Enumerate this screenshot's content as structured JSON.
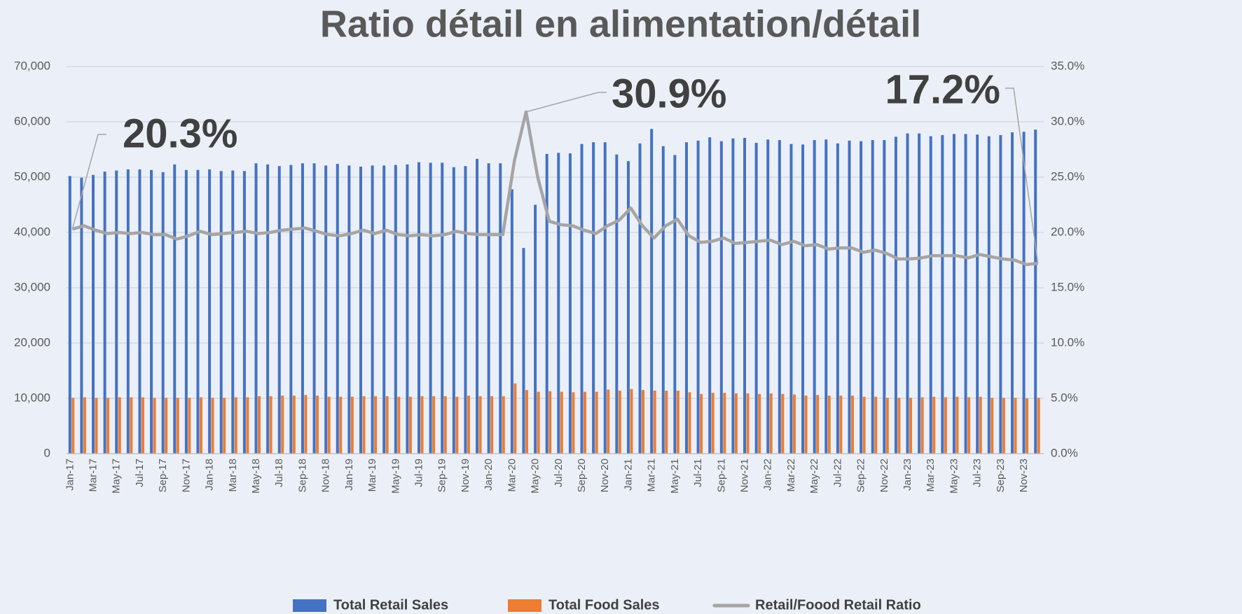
{
  "chart_data": {
    "type": "bar-line",
    "title": "Ratio détail en alimentation/détail",
    "categories": [
      "Jan-17",
      null,
      "Mar-17",
      null,
      "May-17",
      null,
      "Jul-17",
      null,
      "Sep-17",
      null,
      "Nov-17",
      null,
      "Jan-18",
      null,
      "Mar-18",
      null,
      "May-18",
      null,
      "Jul-18",
      null,
      "Sep-18",
      null,
      "Nov-18",
      null,
      "Jan-19",
      null,
      "Mar-19",
      null,
      "May-19",
      null,
      "Jul-19",
      null,
      "Sep-19",
      null,
      "Nov-19",
      null,
      "Jan-20",
      null,
      "Mar-20",
      null,
      "May-20",
      null,
      "Jul-20",
      null,
      "Sep-20",
      null,
      "Nov-20",
      null,
      "Jan-21",
      null,
      "Mar-21",
      null,
      "May-21",
      null,
      "Jul-21",
      null,
      "Sep-21",
      null,
      "Nov-21",
      null,
      "Jan-22",
      null,
      "Mar-22",
      null,
      "May-22",
      null,
      "Jul-22",
      null,
      "Sep-22",
      null,
      "Nov-22",
      null,
      "Jan-23",
      null,
      "Mar-23",
      null,
      "May-23",
      null,
      "Jul-23",
      null,
      "Sep-23",
      null,
      "Nov-23",
      null
    ],
    "series": [
      {
        "name": "Total Retail Sales",
        "color": "#4472c4",
        "values": [
          50200,
          49900,
          50400,
          51000,
          51200,
          51400,
          51400,
          51300,
          50900,
          52300,
          51300,
          51300,
          51400,
          51100,
          51200,
          51100,
          52500,
          52300,
          52000,
          52200,
          52500,
          52500,
          52100,
          52400,
          52100,
          51900,
          52100,
          52100,
          52200,
          52300,
          52700,
          52600,
          52600,
          51800,
          52000,
          53300,
          52500,
          52500,
          47800,
          37200,
          45000,
          54200,
          54400,
          54300,
          56000,
          56300,
          56300,
          54100,
          52900,
          56100,
          58700,
          55600,
          54000,
          56300,
          56600,
          57200,
          56500,
          57000,
          57100,
          56200,
          56800,
          56700,
          56000,
          55900,
          56700,
          56800,
          56100,
          56600,
          56500,
          56700,
          56700,
          57300,
          57900,
          57900,
          57400,
          57600,
          57800,
          57800,
          57700,
          57400,
          57600,
          58100,
          58200,
          58600
        ]
      },
      {
        "name": "Total Food Sales",
        "color": "#ed7d31",
        "values": [
          10100,
          10200,
          10100,
          10100,
          10200,
          10200,
          10200,
          10100,
          10100,
          10100,
          10100,
          10200,
          10100,
          10100,
          10200,
          10200,
          10400,
          10400,
          10500,
          10500,
          10600,
          10500,
          10300,
          10300,
          10300,
          10400,
          10400,
          10400,
          10300,
          10300,
          10400,
          10400,
          10400,
          10300,
          10500,
          10400,
          10400,
          10400,
          12700,
          11500,
          11200,
          11300,
          11200,
          11100,
          11200,
          11200,
          11600,
          11400,
          11700,
          11500,
          11400,
          11400,
          11400,
          11100,
          10800,
          11000,
          11000,
          10900,
          10900,
          10800,
          10900,
          10800,
          10700,
          10500,
          10600,
          10500,
          10500,
          10500,
          10300,
          10300,
          10100,
          10100,
          10100,
          10200,
          10300,
          10200,
          10300,
          10200,
          10300,
          10100,
          10100,
          10100,
          10000,
          10100
        ]
      },
      {
        "name": "Retail/Foood Retail Ratio",
        "color": "#a5a5a5",
        "axis": "y2",
        "values": [
          20.3,
          20.6,
          20.2,
          19.9,
          20.0,
          19.9,
          20.0,
          19.8,
          19.8,
          19.4,
          19.7,
          20.1,
          19.8,
          19.9,
          20.0,
          20.1,
          19.9,
          20.0,
          20.2,
          20.3,
          20.4,
          20.1,
          19.8,
          19.7,
          19.9,
          20.2,
          19.9,
          20.2,
          19.8,
          19.7,
          19.8,
          19.7,
          19.8,
          20.1,
          19.9,
          19.8,
          19.8,
          19.8,
          26.5,
          30.9,
          25.0,
          21.0,
          20.7,
          20.6,
          20.2,
          19.9,
          20.6,
          21.1,
          22.2,
          20.6,
          19.5,
          20.6,
          21.2,
          19.7,
          19.1,
          19.2,
          19.5,
          19.0,
          19.1,
          19.2,
          19.3,
          18.9,
          19.2,
          18.8,
          18.9,
          18.5,
          18.6,
          18.6,
          18.2,
          18.4,
          18.1,
          17.6,
          17.6,
          17.7,
          17.9,
          17.9,
          17.9,
          17.7,
          18.0,
          17.8,
          17.6,
          17.5,
          17.1,
          17.2
        ]
      }
    ],
    "ylim": [
      0,
      70000
    ],
    "yticks": [
      0,
      {
        "value": 10000,
        "label": "10,000"
      },
      {
        "value": 20000,
        "label": "20,000"
      },
      {
        "value": 30000,
        "label": "30,000"
      },
      {
        "value": 40000,
        "label": "40,000"
      },
      {
        "value": 50000,
        "label": "50,000"
      },
      {
        "value": 60000,
        "label": "60,000"
      },
      {
        "value": 70000,
        "label": "70,000"
      }
    ],
    "y2lim": [
      0,
      35
    ],
    "y2ticks": [
      {
        "value": 0,
        "label": "0.0%"
      },
      {
        "value": 5,
        "label": "5.0%"
      },
      {
        "value": 10,
        "label": "10.0%"
      },
      {
        "value": 15,
        "label": "15.0%"
      },
      {
        "value": 20,
        "label": "20.0%"
      },
      {
        "value": 25,
        "label": "25.0%"
      },
      {
        "value": 30,
        "label": "30.0%"
      },
      {
        "value": 35,
        "label": "35.0%"
      }
    ],
    "grid": true,
    "legend": "bottom",
    "annotations": [
      "20.3%",
      "30.9%",
      "17.2%"
    ]
  }
}
